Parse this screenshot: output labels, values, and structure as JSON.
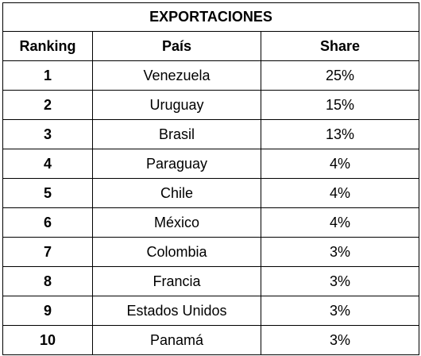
{
  "table": {
    "title": "EXPORTACIONES",
    "headers": {
      "ranking": "Ranking",
      "country": "País",
      "share": "Share"
    },
    "rows": [
      {
        "rank": "1",
        "country": "Venezuela",
        "share": "25%"
      },
      {
        "rank": "2",
        "country": "Uruguay",
        "share": "15%"
      },
      {
        "rank": "3",
        "country": "Brasil",
        "share": "13%"
      },
      {
        "rank": "4",
        "country": "Paraguay",
        "share": "4%"
      },
      {
        "rank": "5",
        "country": "Chile",
        "share": "4%"
      },
      {
        "rank": "6",
        "country": "México",
        "share": "4%"
      },
      {
        "rank": "7",
        "country": "Colombia",
        "share": "3%"
      },
      {
        "rank": "8",
        "country": "Francia",
        "share": "3%"
      },
      {
        "rank": "9",
        "country": "Estados Unidos",
        "share": "3%"
      },
      {
        "rank": "10",
        "country": "Panamá",
        "share": "3%"
      }
    ]
  }
}
